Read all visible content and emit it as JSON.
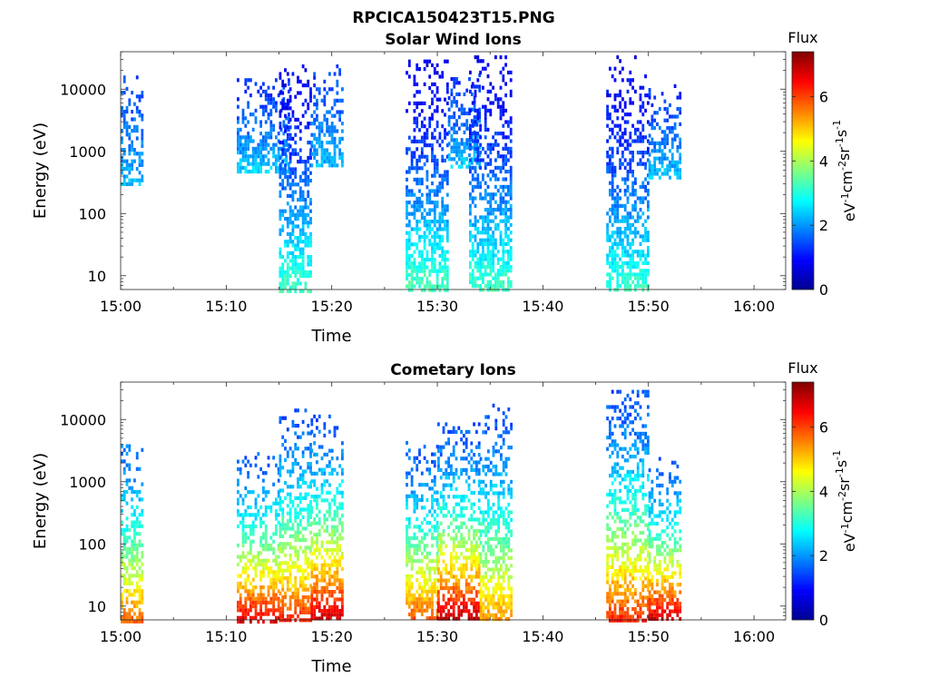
{
  "figure": {
    "title": "RPCICA150423T15.PNG"
  },
  "colors": {
    "colormap": [
      "#00008f",
      "#0000ff",
      "#0080ff",
      "#00ffff",
      "#80ff80",
      "#ffff00",
      "#ff8000",
      "#ff0000",
      "#800000"
    ]
  },
  "chart_data": [
    {
      "type": "heatmap",
      "title": "Solar Wind Ions",
      "xlabel": "Time",
      "ylabel": "Energy (eV)",
      "xlim": [
        "15:00",
        "16:03"
      ],
      "x_ticks": [
        "15:00",
        "15:10",
        "15:20",
        "15:30",
        "15:40",
        "15:50",
        "16:00"
      ],
      "y_scale": "log",
      "ylim": [
        6,
        40000
      ],
      "y_ticks": [
        10,
        100,
        1000,
        10000
      ],
      "y_tick_labels": [
        "10",
        "100",
        "1000",
        "10000"
      ],
      "colorbar": {
        "title": "Flux",
        "label_parts": [
          "eV",
          "-1",
          "cm",
          "-2",
          "sr",
          "-1",
          "s",
          "-1"
        ],
        "range": [
          0,
          7.4
        ],
        "ticks": [
          0,
          2,
          4,
          6
        ],
        "tick_labels": [
          "0",
          "2",
          "4",
          "6"
        ]
      },
      "bursts": [
        {
          "start": "15:00",
          "end": "15:02",
          "e_min": 300,
          "e_max": 22000,
          "flux_hi": 2.3,
          "flux_lo": 1.5
        },
        {
          "start": "15:11",
          "end": "15:16",
          "e_min": 500,
          "e_max": 15000,
          "flux_hi": 2.5,
          "flux_lo": 1.3
        },
        {
          "start": "15:15",
          "end": "15:18",
          "e_min": 6,
          "e_max": 25000,
          "flux_hi": 3.3,
          "flux_lo": 0.8
        },
        {
          "start": "15:18",
          "end": "15:21",
          "e_min": 600,
          "e_max": 25000,
          "flux_hi": 2.3,
          "flux_lo": 1.4
        },
        {
          "start": "15:27",
          "end": "15:31",
          "e_min": 6,
          "e_max": 30000,
          "flux_hi": 3.4,
          "flux_lo": 0.8
        },
        {
          "start": "15:31",
          "end": "15:34",
          "e_min": 600,
          "e_max": 18000,
          "flux_hi": 2.4,
          "flux_lo": 1.3
        },
        {
          "start": "15:33",
          "end": "15:37",
          "e_min": 6,
          "e_max": 35000,
          "flux_hi": 3.3,
          "flux_lo": 0.8
        },
        {
          "start": "15:46",
          "end": "15:50",
          "e_min": 6,
          "e_max": 35000,
          "flux_hi": 3.2,
          "flux_lo": 0.8
        },
        {
          "start": "15:50",
          "end": "15:53",
          "e_min": 400,
          "e_max": 12000,
          "flux_hi": 2.4,
          "flux_lo": 1.3
        }
      ]
    },
    {
      "type": "heatmap",
      "title": "Cometary Ions",
      "xlabel": "Time",
      "ylabel": "Energy (eV)",
      "xlim": [
        "15:00",
        "16:03"
      ],
      "x_ticks": [
        "15:00",
        "15:10",
        "15:20",
        "15:30",
        "15:40",
        "15:50",
        "16:00"
      ],
      "y_scale": "log",
      "ylim": [
        6,
        40000
      ],
      "y_ticks": [
        10,
        100,
        1000,
        10000
      ],
      "y_tick_labels": [
        "10",
        "100",
        "1000",
        "10000"
      ],
      "colorbar": {
        "title": "Flux",
        "label_parts": [
          "eV",
          "-1",
          "cm",
          "-2",
          "sr",
          "-1",
          "s",
          "-1"
        ],
        "range": [
          0,
          7.4
        ],
        "ticks": [
          0,
          2,
          4,
          6
        ],
        "tick_labels": [
          "0",
          "2",
          "4",
          "6"
        ]
      },
      "bursts": [
        {
          "start": "15:00",
          "end": "15:02",
          "e_min": 6,
          "e_max": 4000,
          "flux_hi": 5.8,
          "flux_lo": 1.8
        },
        {
          "start": "15:11",
          "end": "15:15",
          "e_min": 6,
          "e_max": 3000,
          "flux_hi": 6.8,
          "flux_lo": 1.6
        },
        {
          "start": "15:15",
          "end": "15:18",
          "e_min": 6,
          "e_max": 15000,
          "flux_hi": 6.3,
          "flux_lo": 1.5
        },
        {
          "start": "15:18",
          "end": "15:21",
          "e_min": 6,
          "e_max": 12000,
          "flux_hi": 7.0,
          "flux_lo": 1.6
        },
        {
          "start": "15:27",
          "end": "15:30",
          "e_min": 6,
          "e_max": 6000,
          "flux_hi": 6.0,
          "flux_lo": 1.5
        },
        {
          "start": "15:30",
          "end": "15:34",
          "e_min": 6,
          "e_max": 9000,
          "flux_hi": 7.1,
          "flux_lo": 1.5
        },
        {
          "start": "15:34",
          "end": "15:37",
          "e_min": 6,
          "e_max": 18000,
          "flux_hi": 5.5,
          "flux_lo": 1.5
        },
        {
          "start": "15:46",
          "end": "15:50",
          "e_min": 6,
          "e_max": 30000,
          "flux_hi": 6.3,
          "flux_lo": 1.5
        },
        {
          "start": "15:50",
          "end": "15:53",
          "e_min": 6,
          "e_max": 2500,
          "flux_hi": 7.0,
          "flux_lo": 1.6
        }
      ]
    }
  ]
}
